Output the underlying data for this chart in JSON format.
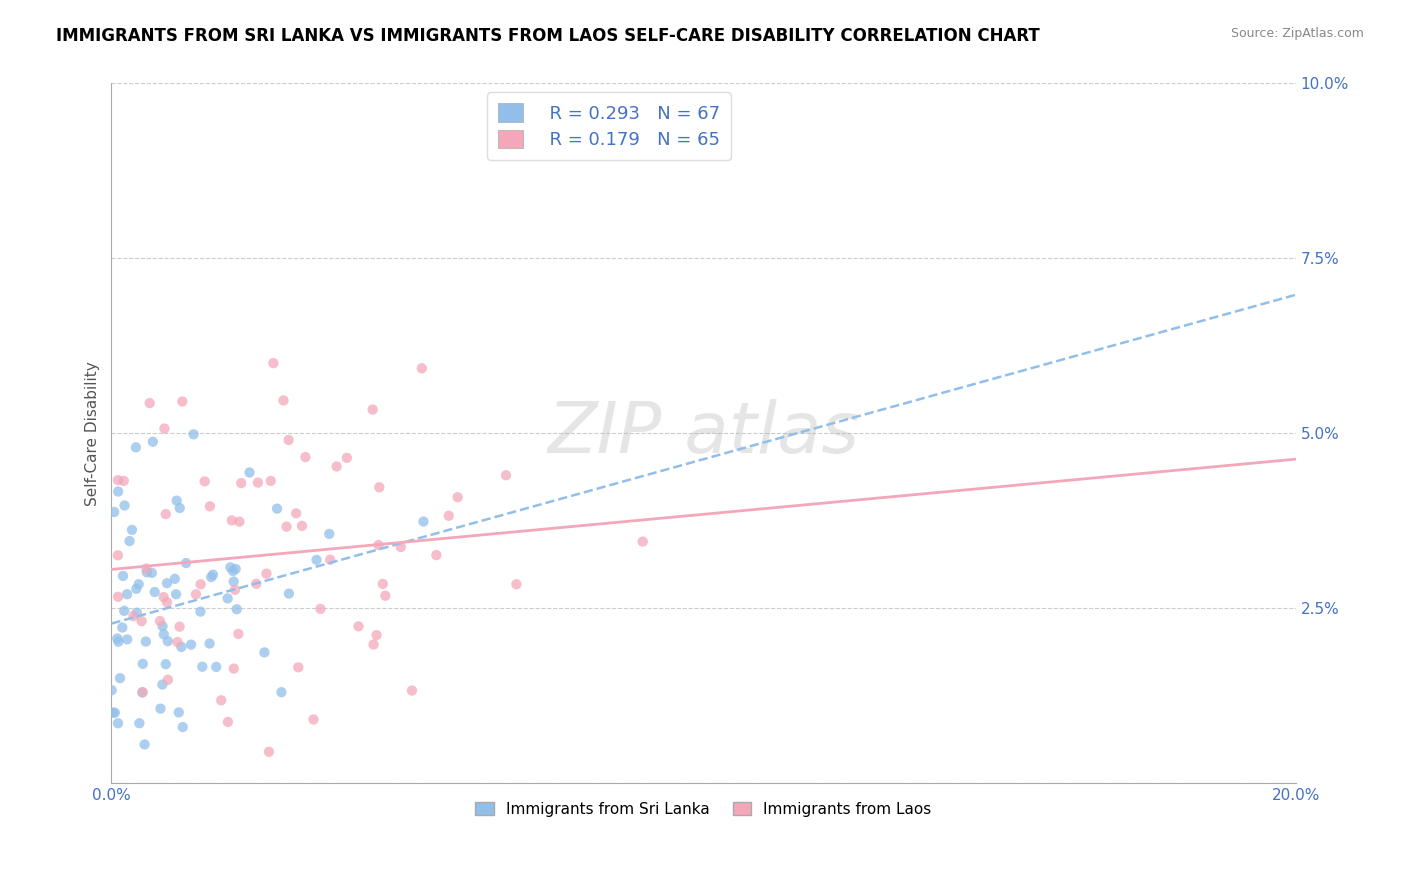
{
  "title": "IMMIGRANTS FROM SRI LANKA VS IMMIGRANTS FROM LAOS SELF-CARE DISABILITY CORRELATION CHART",
  "source": "Source: ZipAtlas.com",
  "ylabel": "Self-Care Disability",
  "legend_r1": "R = 0.293",
  "legend_n1": "N = 67",
  "legend_r2": "R = 0.179",
  "legend_n2": "N = 65",
  "color_sri_lanka": "#92BFEA",
  "color_laos": "#F4A7B9",
  "watermark": "ZIPatlas",
  "xmin": 0.0,
  "xmax": 0.2,
  "ymin": 0.0,
  "ymax": 0.1,
  "yticks": [
    0.0,
    0.025,
    0.05,
    0.075,
    0.1
  ],
  "ytick_labels": [
    "",
    "2.5%",
    "5.0%",
    "7.5%",
    "10.0%"
  ]
}
